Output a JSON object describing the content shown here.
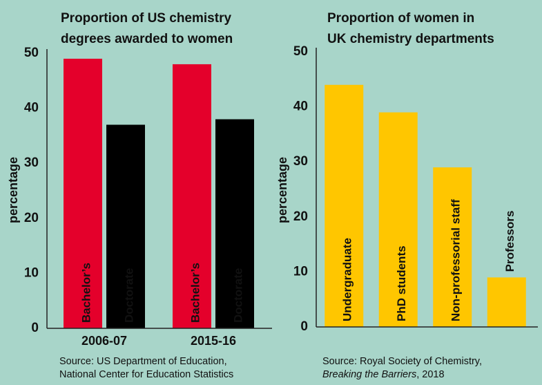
{
  "chart_data": [
    {
      "type": "bar",
      "title": [
        "Proportion of US chemistry",
        "degrees awarded to women"
      ],
      "ylabel": "percentage",
      "categories": [
        "2006-07",
        "2015-16"
      ],
      "series": [
        {
          "name": "Bachelor’s",
          "color": "#e4002b",
          "label_color": "#1a1a1a",
          "values": [
            49,
            48
          ]
        },
        {
          "name": "Doctorate",
          "color": "#000000",
          "label_color": "#ffffff",
          "values": [
            37,
            38
          ]
        }
      ],
      "ylim": [
        0,
        50
      ],
      "yticks": [
        0,
        10,
        20,
        30,
        40,
        50
      ],
      "grid": false,
      "source": [
        "Source: US Department of Education,",
        "National Center for Education Statistics"
      ]
    },
    {
      "type": "bar",
      "title": [
        "Proportion of women in",
        "UK chemistry departments"
      ],
      "ylabel": "percentage",
      "categories": [
        "Undergraduate",
        "PhD students",
        "Non-professorial staff",
        "Professors"
      ],
      "values": [
        44,
        39,
        29,
        9
      ],
      "color": "#ffc600",
      "ylim": [
        0,
        50
      ],
      "yticks": [
        0,
        10,
        20,
        30,
        40,
        50
      ],
      "grid": false,
      "source": [
        "Source: Royal Society of Chemistry,",
        "Breaking the Barriers",
        ", 2018"
      ]
    }
  ]
}
